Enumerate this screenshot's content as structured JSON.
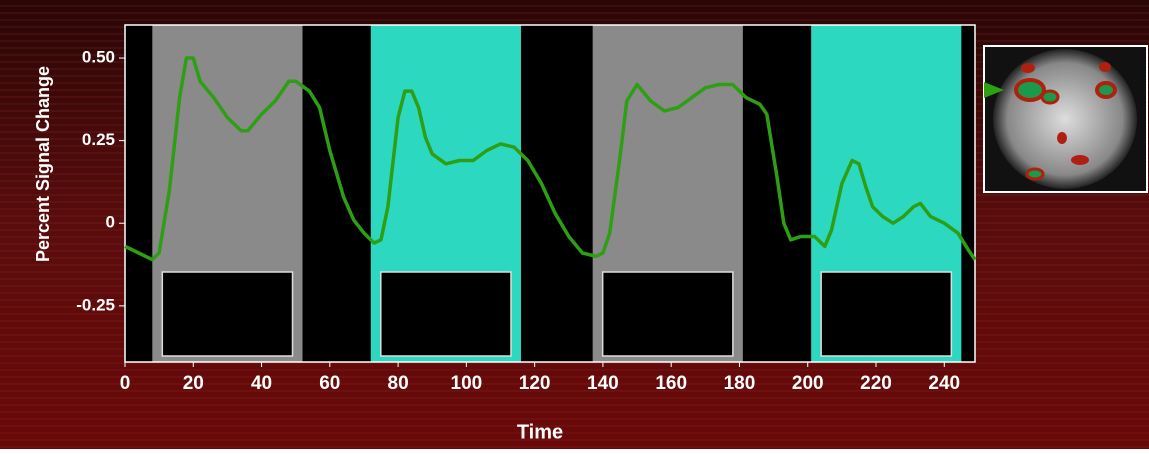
{
  "chart_data": {
    "type": "line",
    "xlabel": "Time",
    "ylabel": "Percent Signal Change",
    "x": [
      0,
      4,
      8,
      10,
      13,
      16,
      18,
      20,
      22,
      26,
      30,
      34,
      36,
      40,
      44,
      48,
      50,
      54,
      57,
      60,
      64,
      67,
      70,
      73,
      75,
      77,
      80,
      82,
      84,
      86,
      88,
      90,
      94,
      98,
      102,
      106,
      110,
      114,
      118,
      122,
      126,
      130,
      134,
      138,
      140,
      142,
      145,
      147,
      150,
      154,
      158,
      162,
      166,
      170,
      174,
      178,
      182,
      186,
      188,
      191,
      193,
      195,
      198,
      202,
      205,
      207,
      210,
      213,
      215,
      217,
      219,
      222,
      225,
      228,
      231,
      233,
      236,
      240,
      244,
      247,
      249
    ],
    "series": [
      {
        "color": "#2e9e14",
        "values": [
          -0.07,
          -0.09,
          -0.11,
          -0.09,
          0.1,
          0.38,
          0.5,
          0.5,
          0.43,
          0.38,
          0.32,
          0.28,
          0.28,
          0.33,
          0.37,
          0.43,
          0.43,
          0.4,
          0.35,
          0.22,
          0.08,
          0.01,
          -0.03,
          -0.06,
          -0.05,
          0.05,
          0.32,
          0.4,
          0.4,
          0.35,
          0.26,
          0.21,
          0.18,
          0.19,
          0.19,
          0.22,
          0.24,
          0.23,
          0.19,
          0.12,
          0.03,
          -0.04,
          -0.09,
          -0.1,
          -0.09,
          -0.03,
          0.2,
          0.37,
          0.42,
          0.37,
          0.34,
          0.35,
          0.38,
          0.41,
          0.42,
          0.42,
          0.38,
          0.36,
          0.33,
          0.14,
          0.0,
          -0.05,
          -0.04,
          -0.04,
          -0.07,
          -0.02,
          0.12,
          0.19,
          0.18,
          0.11,
          0.05,
          0.02,
          0.0,
          0.02,
          0.05,
          0.06,
          0.02,
          0.0,
          -0.03,
          -0.08,
          -0.11
        ]
      }
    ],
    "blocks": [
      {
        "start": 8,
        "end": 52,
        "color": "#8a8a8a"
      },
      {
        "start": 72,
        "end": 116,
        "color": "#2dd8c0"
      },
      {
        "start": 137,
        "end": 181,
        "color": "#8a8a8a"
      },
      {
        "start": 201,
        "end": 245,
        "color": "#2dd8c0"
      }
    ],
    "xlim": [
      0,
      249
    ],
    "ylim": [
      -0.42,
      0.6
    ],
    "xticks": [
      0,
      20,
      40,
      60,
      80,
      100,
      120,
      140,
      160,
      180,
      200,
      220,
      240
    ],
    "yticks": [
      {
        "value": 0.5,
        "label": "0.50"
      },
      0.25,
      0,
      -0.25
    ]
  }
}
